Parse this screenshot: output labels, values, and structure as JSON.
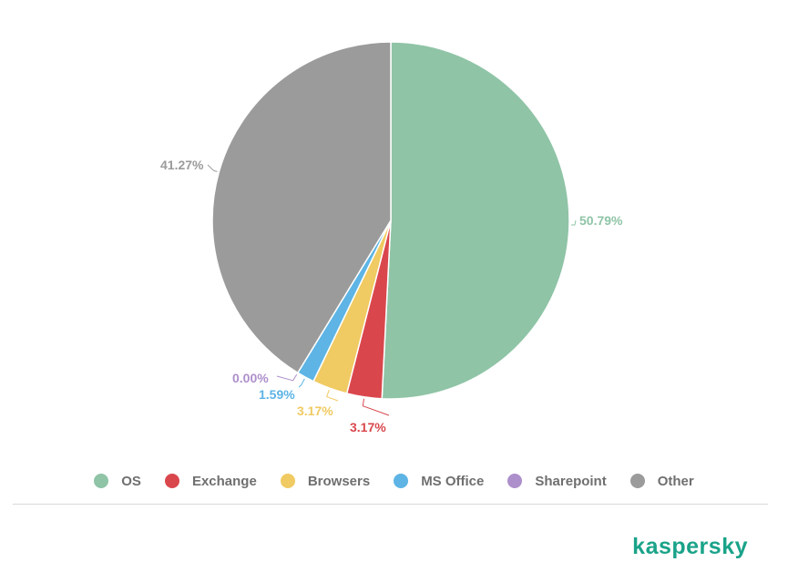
{
  "chart_data": {
    "type": "pie",
    "slices": [
      {
        "name": "OS",
        "value": 50.79,
        "label": "50.79%",
        "color": "#8fc4a6"
      },
      {
        "name": "Exchange",
        "value": 3.17,
        "label": "3.17%",
        "color": "#d9474d"
      },
      {
        "name": "Browsers",
        "value": 3.17,
        "label": "3.17%",
        "color": "#f0ca62"
      },
      {
        "name": "MS Office",
        "value": 1.59,
        "label": "1.59%",
        "color": "#5db4e5"
      },
      {
        "name": "Sharepoint",
        "value": 0.0,
        "label": "0.00%",
        "color": "#ad8fcb"
      },
      {
        "name": "Other",
        "value": 41.27,
        "label": "41.27%",
        "color": "#9b9b9b"
      }
    ],
    "legend_position": "bottom",
    "start_angle": "12 o'clock",
    "direction": "clockwise"
  },
  "legend": {
    "items": [
      {
        "label": "OS",
        "color": "#8fc4a6"
      },
      {
        "label": "Exchange",
        "color": "#d9474d"
      },
      {
        "label": "Browsers",
        "color": "#f0ca62"
      },
      {
        "label": "MS Office",
        "color": "#5db4e5"
      },
      {
        "label": "Sharepoint",
        "color": "#ad8fcb"
      },
      {
        "label": "Other",
        "color": "#9b9b9b"
      }
    ]
  },
  "brand": {
    "text": "kaspersky",
    "color": "#1aa389"
  }
}
